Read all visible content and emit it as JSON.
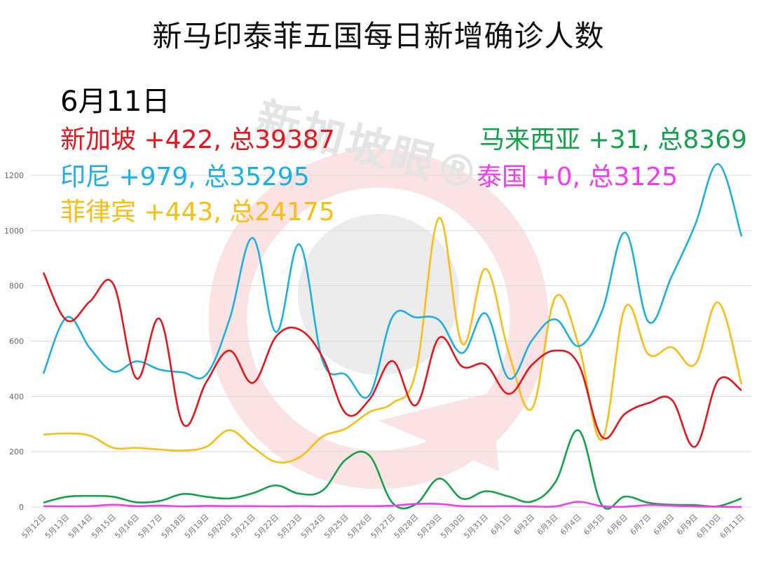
{
  "title": "新马印泰菲五国每日新增确诊人数",
  "watermark": "新加坡眼®",
  "date_label": "6月11日",
  "legend": [
    {
      "country": "新加坡",
      "text": "新加坡 +422, 总39387",
      "color": "#e8141b"
    },
    {
      "country": "印尼",
      "text": "印尼 +979, 总35295",
      "color": "#1ab0e6"
    },
    {
      "country": "菲律宾",
      "text": "菲律宾 +443, 总24175",
      "color": "#fcbd12"
    },
    {
      "country": "马来西亚",
      "text": "马来西亚 +31, 总8369",
      "color": "#12a34a"
    },
    {
      "country": "泰国",
      "text": "泰国 +0, 总3125",
      "color": "#f23bf0"
    }
  ],
  "chart_data": {
    "type": "line",
    "title": "新马印泰菲五国每日新增确诊人数",
    "xlabel": "",
    "ylabel": "",
    "ylim": [
      0,
      1200
    ],
    "yticks": [
      0,
      200,
      400,
      600,
      800,
      1000,
      1200
    ],
    "grid": true,
    "legend_position": "top-annotations",
    "categories": [
      "5月12日",
      "5月13日",
      "5月14日",
      "5月15日",
      "5月16日",
      "5月17日",
      "5月18日",
      "5月19日",
      "5月20日",
      "5月21日",
      "5月22日",
      "5月23日",
      "5月24日",
      "5月25日",
      "5月26日",
      "5月27日",
      "5月28日",
      "5月29日",
      "5月30日",
      "5月31日",
      "6月1日",
      "6月2日",
      "6月3日",
      "6月4日",
      "6月5日",
      "6月6日",
      "6月7日",
      "6月8日",
      "6月9日",
      "6月10日",
      "6月11日"
    ],
    "series": [
      {
        "name": "新加坡",
        "color": "#e8141b",
        "values": [
          848,
          675,
          744,
          807,
          465,
          680,
          300,
          452,
          566,
          449,
          617,
          642,
          541,
          338,
          388,
          528,
          368,
          612,
          508,
          515,
          409,
          515,
          566,
          515,
          254,
          338,
          376,
          388,
          218,
          459,
          422
        ]
      },
      {
        "name": "印尼",
        "color": "#1ab0e6",
        "values": [
          483,
          686,
          574,
          490,
          527,
          497,
          487,
          479,
          680,
          973,
          633,
          950,
          528,
          478,
          404,
          688,
          686,
          676,
          557,
          700,
          465,
          604,
          679,
          582,
          708,
          993,
          670,
          835,
          1020,
          1241,
          979
        ]
      },
      {
        "name": "菲律宾",
        "color": "#fcbd12",
        "values": [
          262,
          266,
          258,
          214,
          214,
          208,
          204,
          218,
          278,
          216,
          163,
          180,
          255,
          284,
          343,
          376,
          488,
          1046,
          590,
          862,
          557,
          357,
          759,
          586,
          244,
          722,
          552,
          578,
          516,
          740,
          443
        ]
      },
      {
        "name": "马来西亚",
        "color": "#12a34a",
        "values": [
          16,
          37,
          40,
          37,
          17,
          22,
          47,
          37,
          31,
          50,
          78,
          48,
          60,
          172,
          187,
          15,
          10,
          103,
          30,
          57,
          38,
          20,
          90,
          277,
          7,
          38,
          15,
          8,
          7,
          3,
          31
        ]
      },
      {
        "name": "泰国",
        "color": "#f23bf0",
        "values": [
          3,
          2,
          3,
          8,
          3,
          5,
          2,
          4,
          3,
          3,
          2,
          3,
          2,
          3,
          3,
          5,
          11,
          11,
          3,
          2,
          3,
          2,
          2,
          19,
          3,
          1,
          7,
          5,
          2,
          1,
          0
        ]
      }
    ]
  }
}
